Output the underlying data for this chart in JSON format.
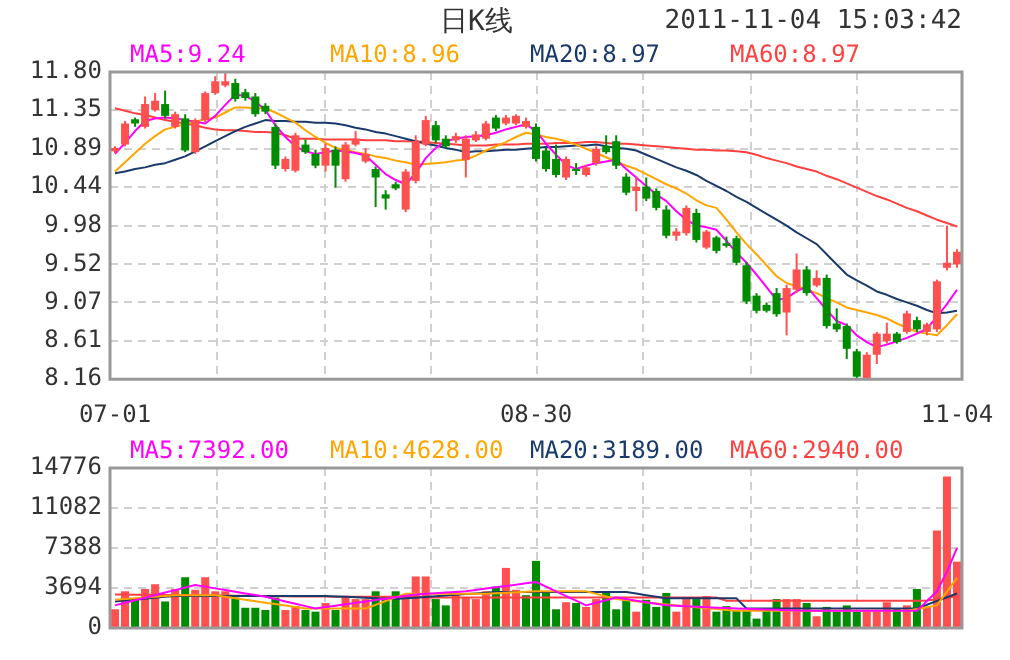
{
  "chart_data": [
    {
      "type": "candlestick",
      "title": "日K线",
      "annotations": [
        "2011-11-04 15:03:42"
      ],
      "categories": [
        "07-01",
        null,
        null,
        null,
        null,
        null,
        null,
        null,
        null,
        null,
        null,
        null,
        null,
        null,
        null,
        null,
        null,
        null,
        null,
        null,
        null,
        null,
        null,
        null,
        null,
        null,
        null,
        null,
        null,
        null,
        null,
        null,
        null,
        null,
        null,
        null,
        null,
        null,
        null,
        null,
        null,
        null,
        "08-30",
        null,
        null,
        null,
        null,
        null,
        null,
        null,
        null,
        null,
        null,
        null,
        null,
        null,
        null,
        null,
        null,
        null,
        null,
        null,
        null,
        null,
        null,
        null,
        null,
        null,
        null,
        null,
        null,
        null,
        null,
        null,
        null,
        null,
        null,
        null,
        null,
        null,
        null,
        null,
        null,
        null,
        "11-04"
      ],
      "ohlc": [
        [
          10.86,
          10.92,
          10.84,
          10.9
        ],
        [
          10.94,
          11.22,
          10.92,
          11.19
        ],
        [
          11.24,
          11.26,
          11.15,
          11.19
        ],
        [
          11.15,
          11.51,
          11.13,
          11.42
        ],
        [
          11.35,
          11.55,
          11.33,
          11.46
        ],
        [
          11.42,
          11.58,
          11.25,
          11.28
        ],
        [
          11.15,
          11.33,
          11.13,
          11.3
        ],
        [
          11.25,
          11.3,
          10.85,
          10.87
        ],
        [
          10.85,
          11.25,
          10.83,
          11.23
        ],
        [
          11.23,
          11.57,
          11.2,
          11.55
        ],
        [
          11.55,
          11.75,
          11.53,
          11.69
        ],
        [
          11.64,
          11.8,
          11.62,
          11.69
        ],
        [
          11.67,
          11.72,
          11.45,
          11.48
        ],
        [
          11.56,
          11.6,
          11.46,
          11.49
        ],
        [
          11.51,
          11.55,
          11.27,
          11.3
        ],
        [
          11.4,
          11.43,
          11.3,
          11.33
        ],
        [
          11.15,
          11.19,
          10.65,
          10.69
        ],
        [
          10.65,
          10.8,
          10.62,
          10.77
        ],
        [
          10.63,
          11.08,
          10.61,
          11.05
        ],
        [
          10.94,
          11.0,
          10.83,
          10.85
        ],
        [
          10.83,
          10.88,
          10.66,
          10.69
        ],
        [
          10.69,
          10.95,
          10.62,
          10.9
        ],
        [
          10.88,
          10.92,
          10.43,
          10.69
        ],
        [
          10.53,
          10.97,
          10.5,
          10.94
        ],
        [
          10.94,
          11.1,
          10.92,
          11.01
        ],
        [
          10.74,
          10.9,
          10.72,
          10.83
        ],
        [
          10.65,
          10.68,
          10.2,
          10.55
        ],
        [
          10.35,
          10.4,
          10.17,
          10.3
        ],
        [
          10.47,
          10.5,
          10.4,
          10.42
        ],
        [
          10.17,
          10.65,
          10.14,
          10.62
        ],
        [
          10.51,
          11.05,
          10.48,
          10.98
        ],
        [
          10.94,
          11.28,
          10.92,
          11.23
        ],
        [
          11.17,
          11.22,
          10.96,
          10.99
        ],
        [
          11.01,
          11.05,
          10.9,
          10.92
        ],
        [
          10.99,
          11.08,
          10.96,
          11.04
        ],
        [
          10.76,
          11.05,
          10.55,
          11.01
        ],
        [
          10.99,
          11.1,
          10.97,
          11.06
        ],
        [
          11.01,
          11.22,
          10.99,
          11.19
        ],
        [
          11.26,
          11.29,
          11.1,
          11.13
        ],
        [
          11.19,
          11.29,
          11.17,
          11.26
        ],
        [
          11.19,
          11.3,
          11.17,
          11.28
        ],
        [
          11.15,
          11.26,
          11.13,
          11.22
        ],
        [
          11.15,
          11.19,
          10.74,
          10.77
        ],
        [
          10.87,
          10.9,
          10.62,
          10.65
        ],
        [
          10.77,
          10.94,
          10.55,
          10.58
        ],
        [
          10.55,
          10.8,
          10.52,
          10.77
        ],
        [
          10.65,
          10.72,
          10.58,
          10.63
        ],
        [
          10.58,
          10.7,
          10.56,
          10.67
        ],
        [
          10.72,
          10.92,
          10.69,
          10.89
        ],
        [
          10.92,
          11.05,
          10.83,
          10.85
        ],
        [
          10.98,
          11.05,
          10.65,
          10.69
        ],
        [
          10.56,
          10.6,
          10.34,
          10.37
        ],
        [
          10.39,
          10.55,
          10.15,
          10.44
        ],
        [
          10.44,
          10.55,
          10.27,
          10.3
        ],
        [
          10.39,
          10.42,
          10.16,
          10.19
        ],
        [
          10.17,
          10.22,
          9.83,
          9.86
        ],
        [
          9.86,
          9.95,
          9.8,
          9.91
        ],
        [
          9.89,
          10.22,
          9.86,
          10.19
        ],
        [
          10.13,
          10.18,
          9.78,
          9.81
        ],
        [
          9.72,
          9.93,
          9.7,
          9.91
        ],
        [
          9.84,
          9.86,
          9.65,
          9.68
        ],
        [
          9.77,
          9.85,
          9.72,
          9.74
        ],
        [
          9.83,
          9.86,
          9.51,
          9.54
        ],
        [
          9.51,
          9.55,
          9.05,
          9.08
        ],
        [
          9.15,
          9.18,
          8.94,
          8.97
        ],
        [
          9.04,
          9.07,
          8.95,
          8.97
        ],
        [
          9.18,
          9.24,
          8.9,
          8.93
        ],
        [
          8.95,
          9.28,
          8.68,
          9.24
        ],
        [
          9.22,
          9.65,
          9.18,
          9.46
        ],
        [
          9.46,
          9.5,
          9.15,
          9.18
        ],
        [
          9.27,
          9.45,
          9.25,
          9.36
        ],
        [
          9.36,
          9.4,
          8.76,
          8.79
        ],
        [
          8.82,
          9.0,
          8.72,
          8.75
        ],
        [
          8.79,
          8.82,
          8.4,
          8.52
        ],
        [
          8.49,
          8.52,
          8.17,
          8.19
        ],
        [
          8.17,
          8.48,
          8.16,
          8.45
        ],
        [
          8.45,
          8.72,
          8.34,
          8.7
        ],
        [
          8.61,
          8.83,
          8.58,
          8.7
        ],
        [
          8.7,
          8.72,
          8.58,
          8.6
        ],
        [
          8.72,
          8.97,
          8.7,
          8.94
        ],
        [
          8.86,
          8.9,
          8.72,
          8.75
        ],
        [
          8.72,
          8.83,
          8.68,
          8.81
        ],
        [
          8.75,
          9.34,
          8.72,
          9.32
        ],
        [
          9.48,
          9.98,
          9.45,
          9.54
        ],
        [
          9.52,
          9.7,
          9.48,
          9.67
        ]
      ],
      "colors": [
        "#ff5050",
        "#ff5050",
        "#008c00",
        "#ff5050",
        "#ff5050",
        "#008c00",
        "#ff5050",
        "#008c00",
        "#ff5050",
        "#ff5050",
        "#ff5050",
        "#ff5050",
        "#008c00",
        "#008c00",
        "#008c00",
        "#008c00",
        "#008c00",
        "#ff5050",
        "#ff5050",
        "#008c00",
        "#008c00",
        "#ff5050",
        "#008c00",
        "#ff5050",
        "#ff5050",
        "#ff5050",
        "#008c00",
        "#008c00",
        "#008c00",
        "#ff5050",
        "#ff5050",
        "#ff5050",
        "#008c00",
        "#008c00",
        "#ff5050",
        "#ff5050",
        "#ff5050",
        "#ff5050",
        "#008c00",
        "#ff5050",
        "#ff5050",
        "#ff5050",
        "#008c00",
        "#008c00",
        "#008c00",
        "#ff5050",
        "#008c00",
        "#ff5050",
        "#ff5050",
        "#008c00",
        "#008c00",
        "#008c00",
        "#ff5050",
        "#008c00",
        "#008c00",
        "#008c00",
        "#ff5050",
        "#ff5050",
        "#008c00",
        "#ff5050",
        "#008c00",
        "#008c00",
        "#008c00",
        "#008c00",
        "#008c00",
        "#008c00",
        "#008c00",
        "#ff5050",
        "#ff5050",
        "#008c00",
        "#ff5050",
        "#008c00",
        "#008c00",
        "#008c00",
        "#008c00",
        "#ff5050",
        "#ff5050",
        "#ff5050",
        "#008c00",
        "#ff5050",
        "#008c00",
        "#ff5050",
        "#ff5050",
        "#ff5050",
        "#ff5050"
      ],
      "series": [
        {
          "type": "line",
          "name": "MA5:9.24",
          "color": "#ff00ff",
          "values": [
            10.83,
            10.96,
            11.1,
            11.22,
            11.25,
            11.26,
            11.25,
            11.23,
            11.21,
            11.19,
            11.28,
            11.41,
            11.53,
            11.52,
            11.45,
            11.35,
            11.17,
            11.03,
            10.92,
            10.86,
            10.83,
            10.85,
            10.87,
            10.86,
            10.84,
            10.81,
            10.7,
            10.59,
            10.52,
            10.47,
            10.6,
            10.78,
            10.9,
            10.98,
            11.01,
            11.03,
            11.04,
            11.05,
            11.08,
            11.12,
            11.15,
            11.18,
            11.1,
            10.95,
            10.82,
            10.7,
            10.65,
            10.69,
            10.72,
            10.74,
            10.76,
            10.65,
            10.55,
            10.45,
            10.35,
            10.27,
            10.15,
            10.05,
            9.98,
            9.96,
            9.93,
            9.8,
            9.66,
            9.54,
            9.4,
            9.25,
            9.1,
            9.12,
            9.2,
            9.26,
            9.12,
            8.98,
            8.85,
            8.8,
            8.68,
            8.6,
            8.54,
            8.57,
            8.61,
            8.65,
            8.7,
            8.76,
            8.9,
            9.05,
            9.22
          ]
        },
        {
          "type": "line",
          "name": "MA10:8.96",
          "color": "#ffa500",
          "values": [
            10.62,
            10.73,
            10.84,
            10.95,
            11.04,
            11.12,
            11.15,
            11.18,
            11.21,
            11.24,
            11.26,
            11.32,
            11.38,
            11.38,
            11.37,
            11.37,
            11.32,
            11.26,
            11.2,
            11.11,
            11.03,
            10.96,
            10.9,
            10.88,
            10.85,
            10.83,
            10.8,
            10.78,
            10.75,
            10.73,
            10.7,
            10.71,
            10.72,
            10.73,
            10.75,
            10.76,
            10.81,
            10.87,
            10.92,
            10.97,
            11.03,
            11.08,
            11.06,
            11.03,
            11.01,
            10.98,
            10.94,
            10.89,
            10.84,
            10.79,
            10.74,
            10.69,
            10.65,
            10.59,
            10.53,
            10.47,
            10.42,
            10.36,
            10.28,
            10.22,
            10.19,
            10.05,
            9.9,
            9.76,
            9.64,
            9.51,
            9.38,
            9.3,
            9.26,
            9.22,
            9.18,
            9.12,
            9.07,
            9.01,
            8.98,
            8.95,
            8.92,
            8.88,
            8.82,
            8.77,
            8.72,
            8.7,
            8.68,
            8.8,
            8.93
          ]
        },
        {
          "type": "line",
          "name": "MA20:8.97",
          "color": "#1a3a6b",
          "values": [
            10.6,
            10.62,
            10.65,
            10.67,
            10.7,
            10.72,
            10.76,
            10.8,
            10.86,
            10.92,
            10.98,
            11.04,
            11.1,
            11.15,
            11.19,
            11.23,
            11.22,
            11.22,
            11.21,
            11.21,
            11.2,
            11.2,
            11.19,
            11.17,
            11.14,
            11.12,
            11.09,
            11.07,
            11.04,
            11.01,
            10.98,
            10.95,
            10.93,
            10.9,
            10.88,
            10.85,
            10.86,
            10.86,
            10.87,
            10.88,
            10.88,
            10.89,
            10.9,
            10.91,
            10.91,
            10.92,
            10.93,
            10.93,
            10.94,
            10.92,
            10.9,
            10.89,
            10.87,
            10.82,
            10.77,
            10.72,
            10.67,
            10.63,
            10.58,
            10.51,
            10.45,
            10.39,
            10.32,
            10.26,
            10.19,
            10.12,
            10.05,
            9.98,
            9.9,
            9.83,
            9.76,
            9.64,
            9.52,
            9.4,
            9.33,
            9.27,
            9.2,
            9.16,
            9.11,
            9.07,
            9.03,
            8.98,
            8.94,
            8.95,
            8.97
          ]
        },
        {
          "type": "line",
          "name": "MA60:8.97",
          "color": "#ff4040",
          "values": [
            11.37,
            11.34,
            11.31,
            11.29,
            11.26,
            11.23,
            11.21,
            11.19,
            11.17,
            11.14,
            11.12,
            11.11,
            11.11,
            11.1,
            11.09,
            11.09,
            11.08,
            11.05,
            11.01,
            11.01,
            11.01,
            11.0,
            11.0,
            11.0,
            11.0,
            10.99,
            10.99,
            10.99,
            10.98,
            10.98,
            10.98,
            10.97,
            10.96,
            10.95,
            10.94,
            10.93,
            10.93,
            10.93,
            10.94,
            10.94,
            10.94,
            10.95,
            10.95,
            10.95,
            10.96,
            10.96,
            10.96,
            10.97,
            10.97,
            10.96,
            10.95,
            10.95,
            10.94,
            10.93,
            10.92,
            10.91,
            10.9,
            10.89,
            10.88,
            10.88,
            10.87,
            10.87,
            10.86,
            10.85,
            10.82,
            10.78,
            10.75,
            10.72,
            10.68,
            10.65,
            10.62,
            10.57,
            10.53,
            10.48,
            10.43,
            10.38,
            10.33,
            10.29,
            10.24,
            10.19,
            10.15,
            10.1,
            10.05,
            10.01,
            9.97
          ]
        }
      ],
      "ylim": [
        8.16,
        11.8
      ],
      "yticks": [
        8.16,
        8.61,
        9.07,
        9.52,
        9.98,
        10.44,
        10.89,
        11.35,
        {
          "value": 11.8,
          "label": "11.80"
        }
      ],
      "grid": true,
      "legend": "top"
    },
    {
      "type": "bar",
      "tick_labels": "y",
      "series": [
        {
          "type": "bar",
          "values": [
            1730,
            3390,
            2670,
            3600,
            4040,
            2450,
            3600,
            4690,
            3530,
            4690,
            3390,
            3390,
            2810,
            1870,
            1870,
            1660,
            2810,
            1660,
            2020,
            1660,
            1510,
            2310,
            1660,
            2960,
            2670,
            2670,
            3390,
            2880,
            3390,
            2810,
            4760,
            4760,
            2670,
            2090,
            3390,
            2810,
            2670,
            3390,
            3820,
            5550,
            3530,
            3030,
            6200,
            3390,
            1730,
            2380,
            2310,
            1950,
            2670,
            3390,
            1730,
            2520,
            1510,
            2600,
            1950,
            3240,
            1510,
            2670,
            2670,
            2960,
            1510,
            2020,
            1660,
            1660,
            870,
            1660,
            2670,
            2670,
            2670,
            2310,
            1080,
            1950,
            1510,
            2090,
            1510,
            1660,
            1660,
            2380,
            1800,
            2090,
            3600,
            1950,
            9010,
            13990,
            6130
          ],
          "colors": [
            "#ff5050",
            "#ff5050",
            "#008c00",
            "#ff5050",
            "#ff5050",
            "#008c00",
            "#ff5050",
            "#008c00",
            "#ff5050",
            "#ff5050",
            "#ff5050",
            "#ff5050",
            "#008c00",
            "#008c00",
            "#008c00",
            "#008c00",
            "#008c00",
            "#ff5050",
            "#ff5050",
            "#008c00",
            "#008c00",
            "#ff5050",
            "#008c00",
            "#ff5050",
            "#ff5050",
            "#ff5050",
            "#008c00",
            "#008c00",
            "#008c00",
            "#ff5050",
            "#ff5050",
            "#ff5050",
            "#008c00",
            "#008c00",
            "#ff5050",
            "#ff5050",
            "#ff5050",
            "#ff5050",
            "#008c00",
            "#ff5050",
            "#ff5050",
            "#008c00",
            "#008c00",
            "#008c00",
            "#008c00",
            "#ff5050",
            "#008c00",
            "#ff5050",
            "#ff5050",
            "#008c00",
            "#008c00",
            "#008c00",
            "#ff5050",
            "#008c00",
            "#008c00",
            "#008c00",
            "#ff5050",
            "#ff5050",
            "#008c00",
            "#ff5050",
            "#008c00",
            "#008c00",
            "#008c00",
            "#008c00",
            "#008c00",
            "#008c00",
            "#008c00",
            "#ff5050",
            "#ff5050",
            "#008c00",
            "#ff5050",
            "#008c00",
            "#008c00",
            "#008c00",
            "#008c00",
            "#ff5050",
            "#ff5050",
            "#ff5050",
            "#008c00",
            "#ff5050",
            "#008c00",
            "#ff5050",
            "#ff5050",
            "#ff5050",
            "#ff5050"
          ]
        },
        {
          "type": "line",
          "name": "MA5:7392.00",
          "color": "#ff00ff",
          "values": [
            2090,
            2330,
            2560,
            2800,
            3030,
            3270,
            3500,
            3740,
            3970,
            3820,
            3660,
            3510,
            3350,
            3190,
            3040,
            2880,
            2670,
            2450,
            2240,
            2020,
            1800,
            1930,
            2060,
            2190,
            2320,
            2450,
            2580,
            2710,
            2840,
            2970,
            3100,
            3160,
            3220,
            3270,
            3330,
            3390,
            3510,
            3640,
            3760,
            3880,
            4000,
            4130,
            4250,
            3820,
            3390,
            2950,
            2520,
            2090,
            2330,
            2570,
            2810,
            2670,
            2520,
            2380,
            2230,
            2090,
            2050,
            2010,
            1960,
            1920,
            1880,
            1840,
            1800,
            1770,
            1740,
            1710,
            1680,
            1650,
            1620,
            1590,
            1590,
            1590,
            1590,
            1590,
            1590,
            1590,
            1590,
            1590,
            1590,
            1590,
            1590,
            2490,
            3390,
            5190,
            7390
          ]
        },
        {
          "type": "line",
          "name": "MA10:4628.00",
          "color": "#ffa500",
          "values": [
            2600,
            2670,
            2740,
            2820,
            2890,
            2960,
            3030,
            3030,
            3030,
            3030,
            3030,
            2890,
            2750,
            2610,
            2480,
            2340,
            2210,
            2070,
            1940,
            1800,
            1800,
            1800,
            1800,
            1800,
            1800,
            1800,
            2140,
            2490,
            2830,
            3170,
            3170,
            3170,
            3170,
            3170,
            3170,
            3170,
            3170,
            3170,
            3210,
            3260,
            3300,
            3350,
            3390,
            3390,
            3390,
            3390,
            3390,
            3390,
            3150,
            2910,
            2670,
            2570,
            2470,
            2360,
            2260,
            2160,
            2080,
            2000,
            1910,
            1830,
            1750,
            1670,
            1590,
            1590,
            1590,
            1590,
            1590,
            1590,
            1590,
            1590,
            1590,
            1590,
            1590,
            1590,
            1590,
            1590,
            1590,
            1590,
            1590,
            1590,
            1760,
            1920,
            2090,
            3360,
            4630
          ]
        },
        {
          "type": "line",
          "name": "MA20:3189.00",
          "color": "#1a3a6b",
          "values": [
            2450,
            2540,
            2620,
            2710,
            2790,
            2880,
            2960,
            2960,
            2960,
            2960,
            2960,
            2960,
            2960,
            2960,
            2960,
            2960,
            2960,
            2960,
            2960,
            2960,
            2960,
            2960,
            2920,
            2880,
            2840,
            2790,
            2750,
            2710,
            2670,
            2740,
            2800,
            2870,
            2930,
            3000,
            3060,
            3130,
            3190,
            3260,
            3320,
            3320,
            3320,
            3320,
            3320,
            3320,
            3320,
            3320,
            3320,
            3320,
            3320,
            3320,
            3320,
            3320,
            3180,
            3030,
            2890,
            2740,
            2740,
            2740,
            2740,
            2740,
            2740,
            2740,
            2740,
            1800,
            1800,
            1800,
            1800,
            1800,
            1800,
            1800,
            1800,
            1800,
            1800,
            1800,
            1800,
            1800,
            1800,
            1800,
            1800,
            1800,
            1800,
            2150,
            2500,
            2840,
            3190
          ]
        },
        {
          "type": "line",
          "name": "MA60:2940.00",
          "color": "#ff4040",
          "values": [
            3100,
            3090,
            3080,
            3070,
            3060,
            3050,
            3040,
            3030,
            3020,
            3010,
            3000,
            2990,
            2980,
            2970,
            2960,
            2950,
            2940,
            2930,
            2920,
            2910,
            2900,
            2900,
            2890,
            2890,
            2890,
            2880,
            2880,
            2880,
            2880,
            2880,
            2880,
            2810,
            2810,
            2810,
            2810,
            2810,
            2810,
            2810,
            2810,
            2810,
            2810,
            2810,
            2810,
            2810,
            2810,
            2810,
            2810,
            2810,
            2810,
            2810,
            2810,
            2810,
            2810,
            2810,
            2810,
            2810,
            2810,
            2810,
            2810,
            2810,
            2810,
            2520,
            2520,
            2520,
            2520,
            2520,
            2520,
            2520,
            2520,
            2520,
            2520,
            2520,
            2520,
            2520,
            2520,
            2520,
            2520,
            2520,
            2520,
            2520,
            2520,
            2550,
            2650,
            2800,
            2940
          ]
        }
      ],
      "ylim": [
        0,
        14776
      ],
      "yticks": [
        0,
        3694,
        7388,
        11082,
        14776
      ],
      "grid": true,
      "legend": "top"
    }
  ]
}
